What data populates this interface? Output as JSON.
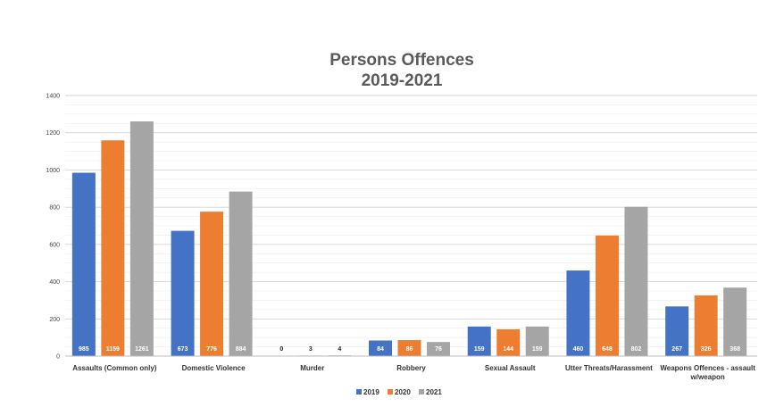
{
  "chart_data": {
    "type": "bar",
    "title_lines": [
      "Persons Offences",
      "2019-2021"
    ],
    "categories": [
      [
        "Assaults (Common only)"
      ],
      [
        "Domestic Violence"
      ],
      [
        "Murder"
      ],
      [
        "Robbery"
      ],
      [
        "Sexual Assault"
      ],
      [
        "Utter Threats/Harassment"
      ],
      [
        "Weapons Offences - assault",
        "w/weapon"
      ]
    ],
    "series": [
      {
        "name": "2019",
        "color": "#4472c4",
        "values": [
          985,
          673,
          0,
          84,
          159,
          460,
          267
        ]
      },
      {
        "name": "2020",
        "color": "#ed7d31",
        "values": [
          1159,
          776,
          3,
          86,
          144,
          648,
          326
        ]
      },
      {
        "name": "2021",
        "color": "#a5a5a5",
        "values": [
          1261,
          884,
          4,
          76,
          159,
          802,
          368
        ]
      }
    ],
    "ylim": [
      0,
      1400
    ],
    "yticks": [
      0,
      200,
      400,
      600,
      800,
      1000,
      1200,
      1400
    ],
    "grid": true,
    "legend_position": "bottom",
    "data_labels": true
  }
}
